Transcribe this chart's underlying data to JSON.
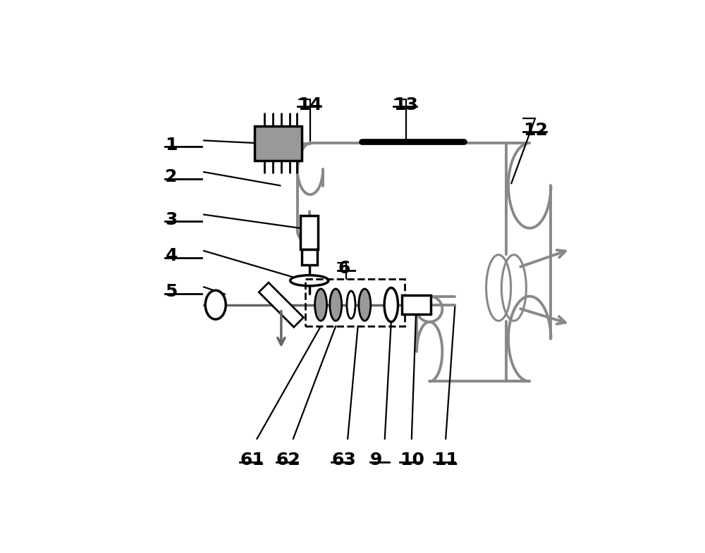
{
  "bg_color": "#ffffff",
  "line_color": "#000000",
  "gray_color": "#888888",
  "dark_gray": "#666666",
  "component_gray": "#999999",
  "loop_lw": 2.8,
  "main_lw": 2.5,
  "thin_lw": 1.6,
  "figsize": [
    10.0,
    7.85
  ],
  "label_positions": {
    "1": [
      0.04,
      0.835,
      0.085
    ],
    "2": [
      0.04,
      0.76,
      0.085
    ],
    "3": [
      0.04,
      0.66,
      0.085
    ],
    "4": [
      0.04,
      0.575,
      0.085
    ],
    "5": [
      0.04,
      0.49,
      0.085
    ],
    "6": [
      0.445,
      0.545,
      0.04
    ],
    "9": [
      0.52,
      0.095,
      0.045
    ],
    "10": [
      0.59,
      0.095,
      0.05
    ],
    "11": [
      0.67,
      0.095,
      0.05
    ],
    "12": [
      0.88,
      0.87,
      0.055
    ],
    "13": [
      0.575,
      0.93,
      0.055
    ],
    "14": [
      0.35,
      0.93,
      0.055
    ],
    "61": [
      0.215,
      0.095,
      0.05
    ],
    "62": [
      0.3,
      0.095,
      0.05
    ],
    "63": [
      0.43,
      0.095,
      0.05
    ]
  }
}
